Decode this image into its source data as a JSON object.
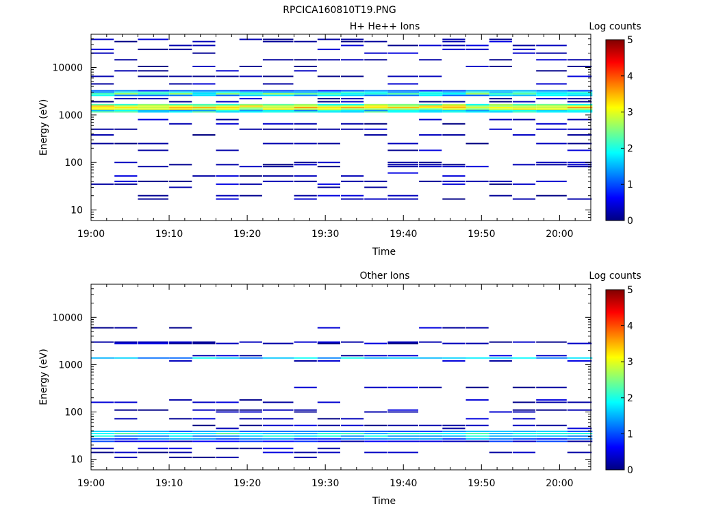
{
  "page_title": "RPCICA160810T19.PNG",
  "colormap": [
    "#000080",
    "#0000ff",
    "#00ffff",
    "#ffff00",
    "#ff0000",
    "#800000"
  ],
  "chart_data": [
    {
      "type": "heatmap",
      "title": "H+ He++ Ions",
      "xlabel": "Time",
      "ylabel": "Energy (eV)",
      "yscale": "log",
      "ylim": [
        6,
        50000
      ],
      "xlim_minutes": [
        0,
        64
      ],
      "x_ticks": [
        "19:00",
        "19:10",
        "19:20",
        "19:30",
        "19:40",
        "19:50",
        "20:00"
      ],
      "y_ticks": [
        "10",
        "100",
        "1000",
        "10000"
      ],
      "colorbar": {
        "label": "Log counts",
        "range": [
          0,
          5
        ],
        "ticks": [
          "0",
          "1",
          "2",
          "3",
          "4",
          "5"
        ]
      },
      "x_bins": [
        "19:00",
        "19:03",
        "19:06",
        "19:10",
        "19:13",
        "19:16",
        "19:19",
        "19:22",
        "19:26",
        "19:29",
        "19:32",
        "19:35",
        "19:38",
        "19:42",
        "19:45",
        "19:48",
        "19:51",
        "19:54",
        "19:57",
        "20:01"
      ],
      "constant_bands": [
        {
          "energy": 1160,
          "value": 2.0
        },
        {
          "energy": 1240,
          "value": 1.6
        },
        {
          "energy": 1330,
          "value": 2.8
        },
        {
          "energy": 1430,
          "value": 3.2
        },
        {
          "energy": 1540,
          "value": 3.0
        },
        {
          "energy": 1650,
          "value": 2.3
        },
        {
          "energy": 2580,
          "value": 1.5
        },
        {
          "energy": 2780,
          "value": 2.2
        },
        {
          "energy": 3000,
          "value": 1.8
        },
        {
          "energy": 3230,
          "value": 1.1
        }
      ],
      "sparse_energies": [
        17,
        20,
        30,
        35,
        40,
        52,
        60,
        82,
        90,
        100,
        180,
        250,
        380,
        500,
        650,
        800,
        1900,
        2200,
        4500,
        6500,
        8500,
        10500,
        14500,
        20000,
        24000,
        29000,
        35000,
        39000
      ]
    },
    {
      "type": "heatmap",
      "title": "Other Ions",
      "xlabel": "Time",
      "ylabel": "Energy (eV)",
      "yscale": "log",
      "ylim": [
        6,
        50000
      ],
      "xlim_minutes": [
        0,
        64
      ],
      "x_ticks": [
        "19:00",
        "19:10",
        "19:20",
        "19:30",
        "19:40",
        "19:50",
        "20:00"
      ],
      "y_ticks": [
        "10",
        "100",
        "1000",
        "10000"
      ],
      "colorbar": {
        "label": "Log counts",
        "range": [
          0,
          5
        ],
        "ticks": [
          "0",
          "1",
          "2",
          "3",
          "4",
          "5"
        ]
      },
      "x_bins": [
        "19:00",
        "19:03",
        "19:06",
        "19:10",
        "19:13",
        "19:16",
        "19:19",
        "19:22",
        "19:26",
        "19:29",
        "19:32",
        "19:35",
        "19:38",
        "19:42",
        "19:45",
        "19:48",
        "19:51",
        "19:54",
        "19:57",
        "20:01"
      ],
      "constant_bands": [
        {
          "energy": 24,
          "value": 0.6
        },
        {
          "energy": 27,
          "value": 1.1
        },
        {
          "energy": 31,
          "value": 1.6
        },
        {
          "energy": 35,
          "value": 1.9
        },
        {
          "energy": 39,
          "value": 1.2
        },
        {
          "energy": 1380,
          "value": 1.5
        }
      ],
      "sparse_energies": [
        11,
        14,
        17,
        45,
        52,
        72,
        100,
        110,
        160,
        180,
        330,
        1200,
        1550,
        2800,
        3000,
        6000
      ]
    }
  ]
}
